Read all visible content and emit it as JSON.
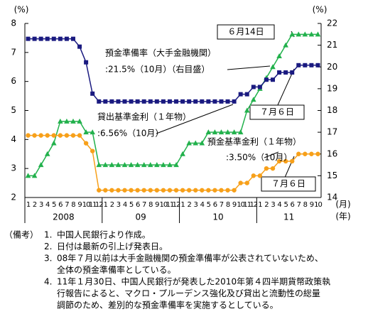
{
  "chart_data": {
    "type": "line",
    "y_unit": "(%)",
    "y2_unit": "(%)",
    "x_unit": "(月)",
    "group_unit": "(年)",
    "categories": [
      "1",
      "2",
      "3",
      "4",
      "5",
      "6",
      "7",
      "8",
      "9",
      "10",
      "11",
      "12",
      "1",
      "2",
      "3",
      "4",
      "5",
      "6",
      "7",
      "8",
      "9",
      "10",
      "11",
      "12",
      "1",
      "2",
      "3",
      "4",
      "5",
      "6",
      "7",
      "8",
      "9",
      "10",
      "11",
      "12",
      "1",
      "2",
      "3",
      "4",
      "5",
      "6",
      "7",
      "8",
      "9",
      "10"
    ],
    "groups": [
      "2008",
      "09",
      "10",
      "11"
    ],
    "ylim": [
      2,
      8
    ],
    "yticks": [
      2,
      3,
      4,
      5,
      6,
      7,
      8
    ],
    "y2lim": [
      14,
      22
    ],
    "y2ticks": [
      14,
      15,
      16,
      17,
      18,
      19,
      20,
      21,
      22
    ],
    "series": [
      {
        "name": "預金準備率",
        "color": "#22b14c",
        "marker": "triangle",
        "axis": "y2",
        "values": [
          15,
          15,
          15.5,
          16,
          16.5,
          17.5,
          17.5,
          17.5,
          17.5,
          17,
          17,
          15.5,
          15.5,
          15.5,
          15.5,
          15.5,
          15.5,
          15.5,
          15.5,
          15.5,
          15.5,
          15.5,
          15.5,
          15.5,
          16,
          16.5,
          16.5,
          16.5,
          17,
          17,
          17,
          17,
          17,
          17,
          18,
          18.5,
          19,
          19.5,
          20,
          20.5,
          21,
          21.5,
          21.5,
          21.5,
          21.5,
          21.5
        ]
      },
      {
        "name": "貸出基準金利",
        "color": "#1a1a80",
        "marker": "square",
        "values": [
          7.47,
          7.47,
          7.47,
          7.47,
          7.47,
          7.47,
          7.47,
          7.47,
          7.2,
          6.66,
          5.58,
          5.31,
          5.31,
          5.31,
          5.31,
          5.31,
          5.31,
          5.31,
          5.31,
          5.31,
          5.31,
          5.31,
          5.31,
          5.31,
          5.31,
          5.31,
          5.31,
          5.31,
          5.31,
          5.31,
          5.31,
          5.31,
          5.31,
          5.56,
          5.56,
          5.81,
          5.81,
          6.06,
          6.06,
          6.31,
          6.31,
          6.31,
          6.56,
          6.56,
          6.56,
          6.56
        ]
      },
      {
        "name": "預金基準金利",
        "color": "#f7a01a",
        "marker": "circle",
        "values": [
          4.14,
          4.14,
          4.14,
          4.14,
          4.14,
          4.14,
          4.14,
          4.14,
          4.14,
          3.87,
          3.6,
          2.25,
          2.25,
          2.25,
          2.25,
          2.25,
          2.25,
          2.25,
          2.25,
          2.25,
          2.25,
          2.25,
          2.25,
          2.25,
          2.25,
          2.25,
          2.25,
          2.25,
          2.25,
          2.25,
          2.25,
          2.25,
          2.25,
          2.5,
          2.5,
          2.75,
          2.75,
          3,
          3,
          3.25,
          3.25,
          3.25,
          3.5,
          3.5,
          3.5,
          3.5
        ]
      }
    ],
    "annotations": [
      "預金準備率（大手金融機関）",
      ":21.5%（10月）（右目盛）",
      "貸出基準金利（１年物）",
      ":6.56%（10月）",
      "預金基準金利（１年物）",
      ":3.50%（10月）"
    ],
    "date_boxes": [
      "６月14日",
      "７月６日",
      "７月６日"
    ]
  },
  "notes": {
    "heading": "（備考）",
    "items": [
      {
        "number": "1.",
        "lines": [
          "中国人民銀行より作成。"
        ]
      },
      {
        "number": "2.",
        "lines": [
          "日付は最新の引上げ発表日。"
        ]
      },
      {
        "number": "3.",
        "lines": [
          "08年７月以前は大手金融機関の預金準備率が公表されていないため、",
          "全体の預金準備率としている。"
        ]
      },
      {
        "number": "4.",
        "lines": [
          "11年１月30日、中国人民銀行が発表した2010年第４四半期貨幣政策執",
          "行報告によると、マクロ・プルーデンス強化及び貸出と流動性の総量",
          "調節のため、差別的な預金準備率を実施するとしている。"
        ]
      }
    ]
  }
}
